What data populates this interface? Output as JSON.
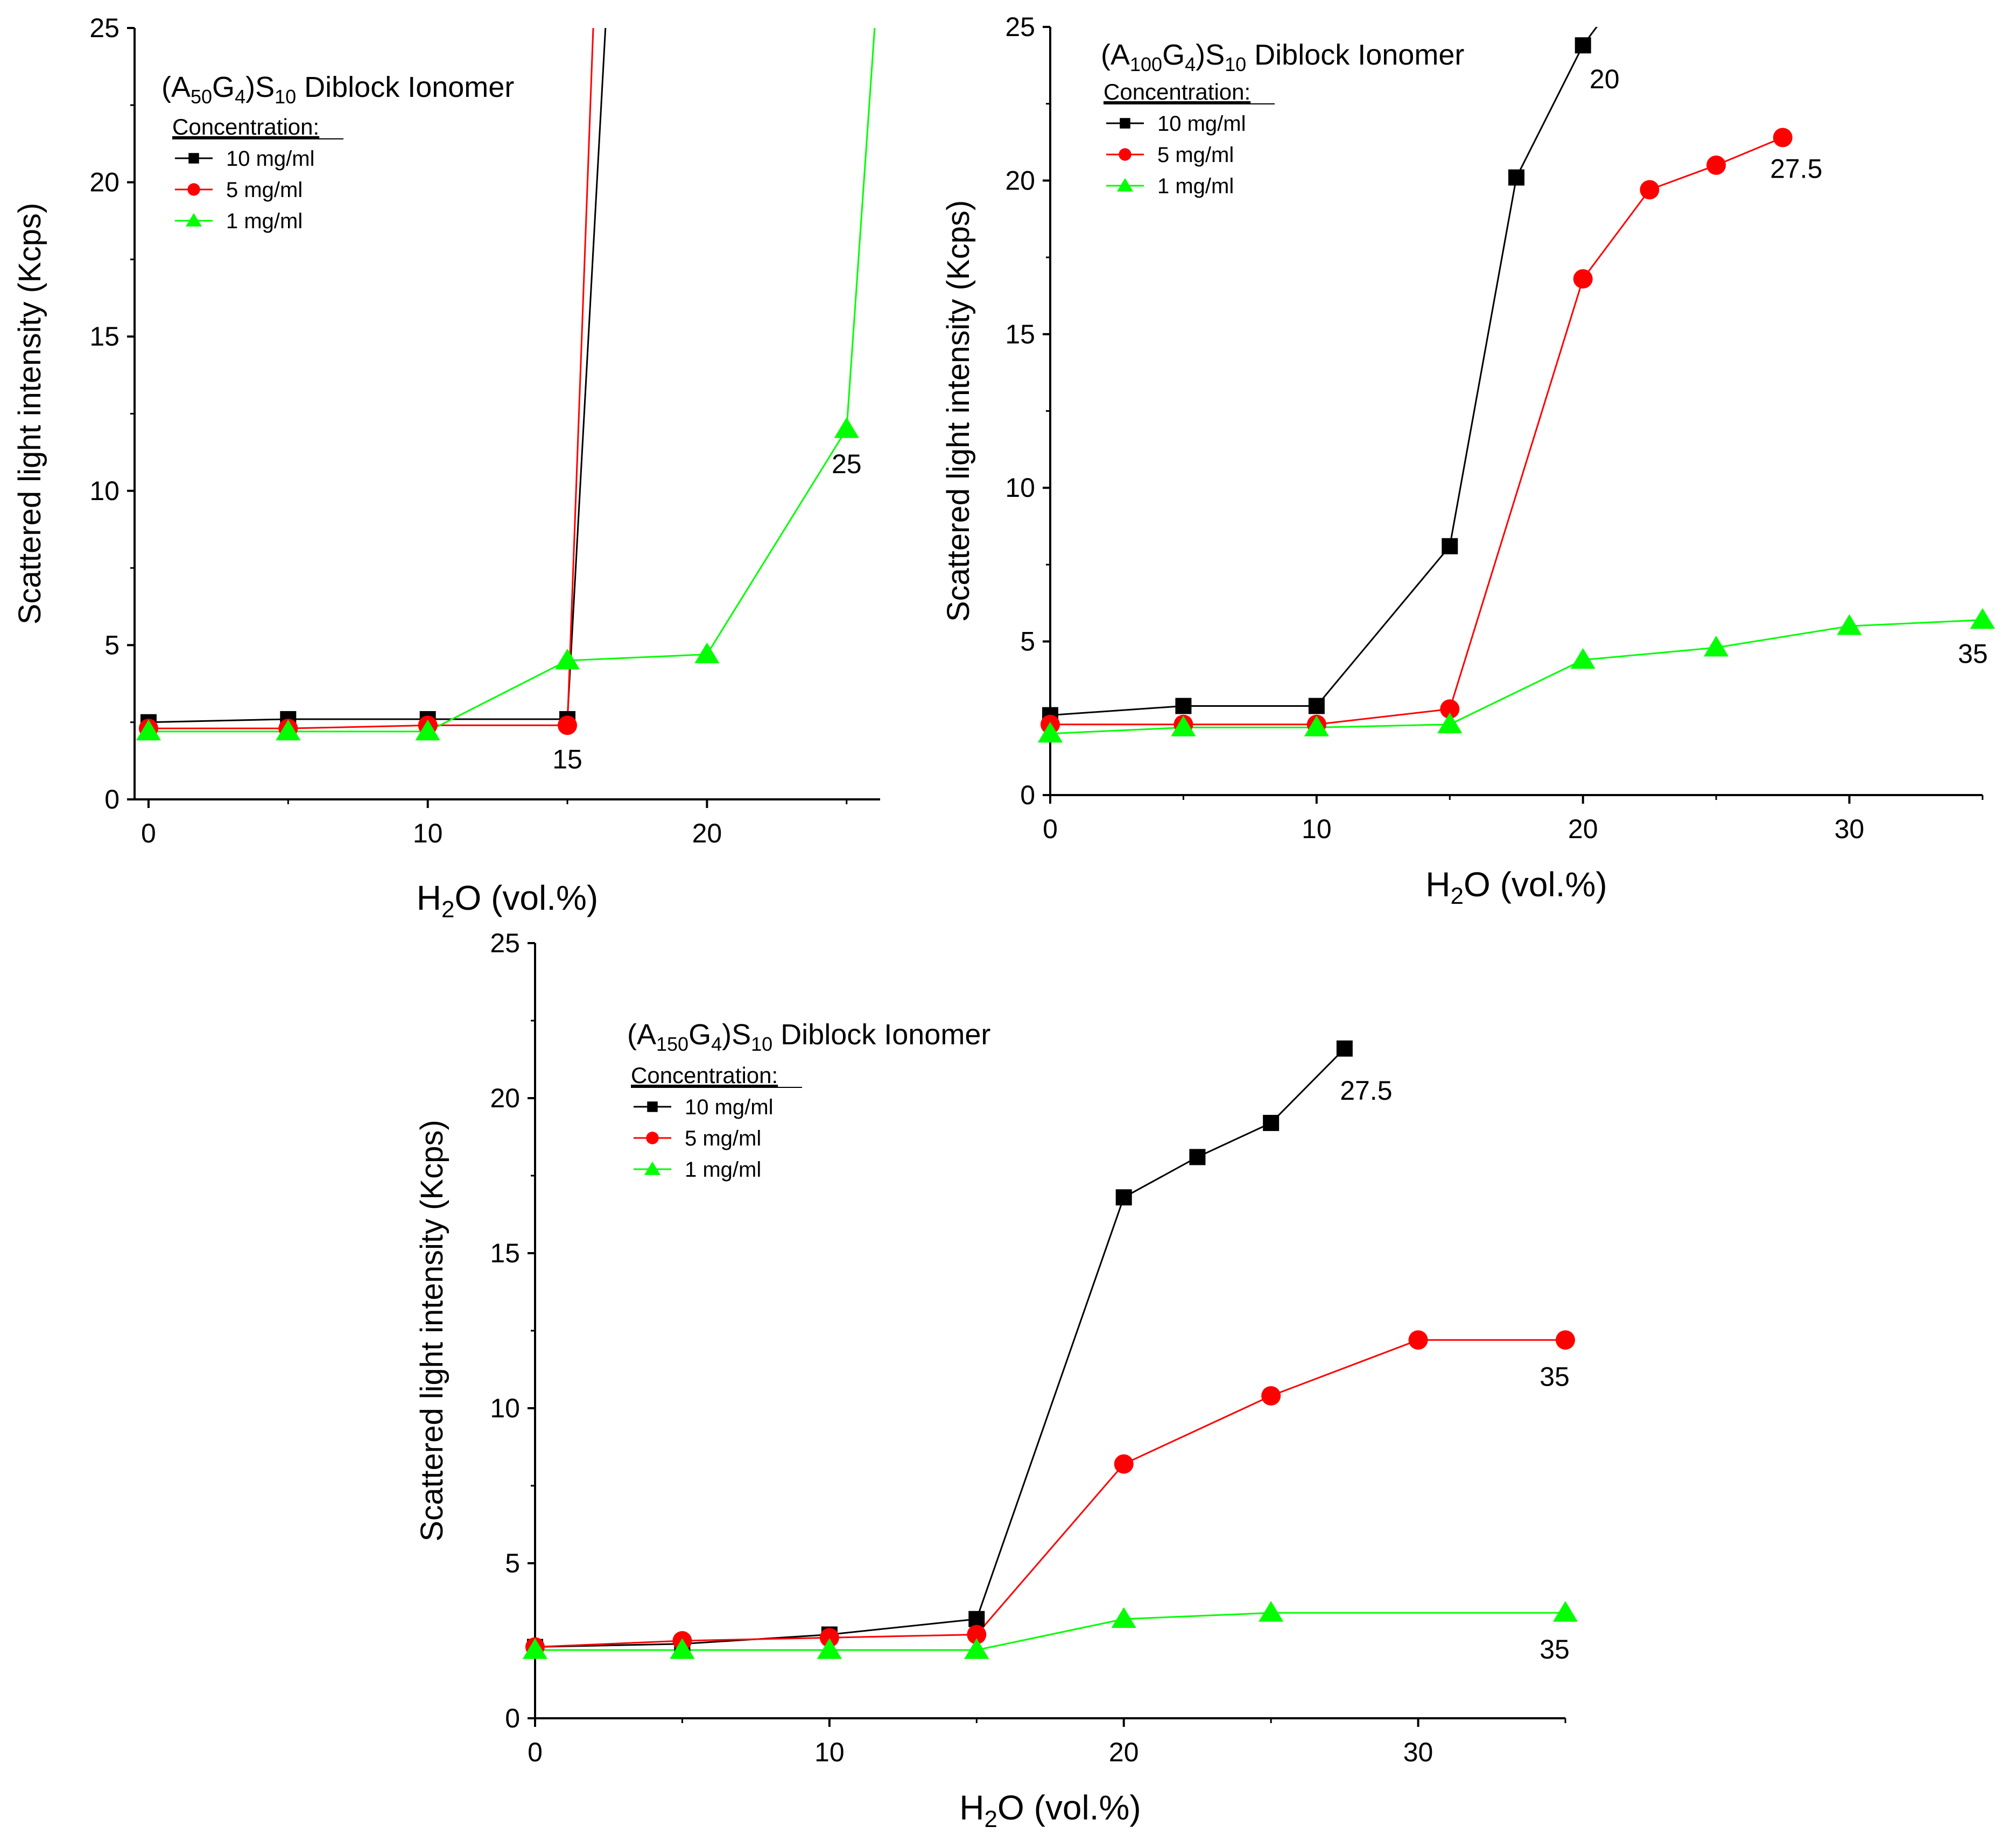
{
  "chart_data": [
    {
      "id": "a50",
      "type": "line",
      "title": {
        "main": "(A",
        "sub1": "50",
        "mid1": "G",
        "sub2": "4",
        "mid2": ")S",
        "sub3": "10",
        "tail": " Diblock Ionomer"
      },
      "xlabel": {
        "pre": "H",
        "sub": "2",
        "post": "O (vol.%)"
      },
      "ylabel": "Scattered light intensity (Kcps)",
      "xlim": [
        -0.5,
        26.2
      ],
      "ylim": [
        0,
        25
      ],
      "xticks": [
        0,
        10,
        20
      ],
      "yticks": [
        0,
        5,
        10,
        15,
        20,
        25
      ],
      "legend_heading": "Concentration:",
      "legend_position": "top-left",
      "series": [
        {
          "name": "10 mg/ml",
          "color": "#000000",
          "marker": "square",
          "x": [
            0,
            5,
            10,
            15
          ],
          "y": [
            2.5,
            2.6,
            2.6,
            2.6
          ],
          "extend": [
            [
              15,
              2.6
            ],
            [
              16.4,
              25.6
            ]
          ]
        },
        {
          "name": "5 mg/ml",
          "color": "#ff0000",
          "marker": "circle",
          "x": [
            0,
            5,
            10,
            15
          ],
          "y": [
            2.3,
            2.3,
            2.4,
            2.4
          ],
          "extend": [
            [
              15,
              2.4
            ],
            [
              15.95,
              25.6
            ]
          ]
        },
        {
          "name": "1 mg/ml",
          "color": "#00ff00",
          "marker": "triangle",
          "x": [
            0,
            5,
            10,
            15,
            20,
            25
          ],
          "y": [
            2.2,
            2.2,
            2.2,
            4.5,
            4.7,
            12.0
          ],
          "extend": [
            [
              25,
              12.0
            ],
            [
              26.05,
              25.6
            ]
          ]
        }
      ],
      "annotations": [
        {
          "text": "15",
          "x": 15,
          "y": 2.4
        },
        {
          "text": "25",
          "x": 25,
          "y": 12.0
        }
      ]
    },
    {
      "id": "a100",
      "type": "line",
      "title": {
        "main": "(A",
        "sub1": "100",
        "mid1": "G",
        "sub2": "4",
        "mid2": ")S",
        "sub3": "10",
        "tail": " Diblock Ionomer"
      },
      "xlabel": {
        "pre": "H",
        "sub": "2",
        "post": "O (vol.%)"
      },
      "ylabel": "Scattered light intensity (Kcps)",
      "xlim": [
        0,
        35
      ],
      "ylim": [
        0,
        25
      ],
      "xticks": [
        0,
        10,
        20,
        30
      ],
      "yticks": [
        0,
        5,
        10,
        15,
        20,
        25
      ],
      "legend_heading": "Concentration:",
      "legend_position": "top-left",
      "series": [
        {
          "name": "10 mg/ml",
          "color": "#000000",
          "marker": "square",
          "x": [
            0,
            5,
            10,
            15,
            17.5,
            20
          ],
          "y": [
            2.6,
            2.9,
            2.9,
            8.1,
            20.1,
            24.4
          ],
          "extend": [
            [
              20,
              24.4
            ],
            [
              20.6,
              25.1
            ]
          ]
        },
        {
          "name": "5 mg/ml",
          "color": "#ff0000",
          "marker": "circle",
          "x": [
            0,
            5,
            10,
            15,
            20,
            22.5,
            25,
            27.5
          ],
          "y": [
            2.3,
            2.3,
            2.3,
            2.8,
            16.8,
            19.7,
            20.5,
            21.4
          ]
        },
        {
          "name": "1 mg/ml",
          "color": "#00ff00",
          "marker": "triangle",
          "x": [
            0,
            5,
            10,
            15,
            20,
            25,
            30,
            35
          ],
          "y": [
            2.0,
            2.2,
            2.2,
            2.3,
            4.4,
            4.8,
            5.5,
            5.7
          ]
        }
      ],
      "annotations": [
        {
          "text": "20",
          "x": 20,
          "y": 24.4
        },
        {
          "text": "27.5",
          "x": 27.5,
          "y": 21.4
        },
        {
          "text": "35",
          "x": 35,
          "y": 5.7
        }
      ]
    },
    {
      "id": "a150",
      "type": "line",
      "title": {
        "main": "(A",
        "sub1": "150",
        "mid1": "G",
        "sub2": "4",
        "mid2": ")S",
        "sub3": "10",
        "tail": " Diblock Ionomer"
      },
      "xlabel": {
        "pre": "H",
        "sub": "2",
        "post": "O (vol.%)"
      },
      "ylabel": "Scattered light intensity (Kcps)",
      "xlim": [
        0,
        35
      ],
      "ylim": [
        0,
        25
      ],
      "xticks": [
        0,
        10,
        20,
        30
      ],
      "yticks": [
        0,
        5,
        10,
        15,
        20,
        25
      ],
      "legend_heading": "Concentration:",
      "legend_position": "top-left",
      "series": [
        {
          "name": "10 mg/ml",
          "color": "#000000",
          "marker": "square",
          "x": [
            0,
            5,
            10,
            15,
            20,
            22.5,
            25,
            27.5
          ],
          "y": [
            2.3,
            2.4,
            2.7,
            3.2,
            16.8,
            18.1,
            19.2,
            21.6
          ]
        },
        {
          "name": "5 mg/ml",
          "color": "#ff0000",
          "marker": "circle",
          "x": [
            0,
            5,
            10,
            15,
            20,
            25,
            30,
            35
          ],
          "y": [
            2.3,
            2.5,
            2.6,
            2.7,
            8.2,
            10.4,
            12.2,
            12.2
          ]
        },
        {
          "name": "1 mg/ml",
          "color": "#00ff00",
          "marker": "triangle",
          "x": [
            0,
            5,
            10,
            15,
            20,
            25,
            35
          ],
          "y": [
            2.2,
            2.2,
            2.2,
            2.2,
            3.2,
            3.4,
            3.4
          ]
        }
      ],
      "annotations": [
        {
          "text": "27.5",
          "x": 27.5,
          "y": 21.6
        },
        {
          "text": "35",
          "x": 35,
          "y": 12.2
        },
        {
          "text": "35",
          "x": 35,
          "y": 3.4
        }
      ]
    }
  ]
}
